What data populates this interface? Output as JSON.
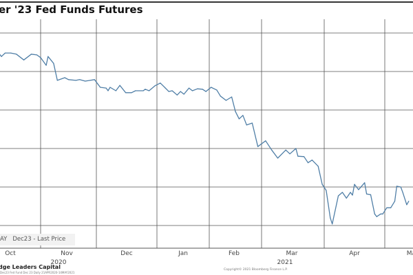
{
  "title": "er '23 Fed Funds Futures",
  "legend": {
    "ticker": "AY",
    "series": "Dec23 - Last Price"
  },
  "footer": {
    "name": "dge Leaders Capital",
    "info": "Dec23 Fed Fund Dec 23  Daily 21APR2020-14MAY2021",
    "copyright": "Copyright© 2021 Bloomberg Finance L.P."
  },
  "colors": {
    "line": "#4f7ea6",
    "grid": "#555555"
  },
  "chart_data": {
    "type": "line",
    "title": "er '23 Fed Funds Futures",
    "xlabel": "",
    "ylabel": "",
    "y_axis_labels_shown": false,
    "ylim_grid_units": [
      0,
      5
    ],
    "grid": true,
    "legend_position": "bottom-left",
    "x_tick_labels": [
      "Oct",
      "Nov",
      "Dec",
      "Jan",
      "Feb",
      "Mar",
      "Apr",
      "May"
    ],
    "x_year_labels": [
      "2020",
      "2021"
    ],
    "series": [
      {
        "name": "Dec23 - Last Price",
        "points": [
          [
            "2020-10-10",
            4.45
          ],
          [
            "2020-10-11",
            4.39
          ],
          [
            "2020-10-13",
            4.48
          ],
          [
            "2020-10-16",
            4.48
          ],
          [
            "2020-10-19",
            4.45
          ],
          [
            "2020-10-23",
            4.3
          ],
          [
            "2020-10-27",
            4.45
          ],
          [
            "2020-10-30",
            4.43
          ],
          [
            "2020-11-01",
            4.36
          ],
          [
            "2020-11-04",
            4.16
          ],
          [
            "2020-11-05",
            4.39
          ],
          [
            "2020-11-08",
            4.21
          ],
          [
            "2020-11-10",
            3.77
          ],
          [
            "2020-11-14",
            3.84
          ],
          [
            "2020-11-16",
            3.79
          ],
          [
            "2020-11-20",
            3.77
          ],
          [
            "2020-11-22",
            3.79
          ],
          [
            "2020-11-25",
            3.75
          ],
          [
            "2020-11-30",
            3.79
          ],
          [
            "2020-12-03",
            3.59
          ],
          [
            "2020-12-06",
            3.57
          ],
          [
            "2020-12-07",
            3.5
          ],
          [
            "2020-12-08",
            3.59
          ],
          [
            "2020-12-11",
            3.5
          ],
          [
            "2020-12-13",
            3.64
          ],
          [
            "2020-12-16",
            3.45
          ],
          [
            "2020-12-19",
            3.45
          ],
          [
            "2020-12-21",
            3.5
          ],
          [
            "2020-12-25",
            3.5
          ],
          [
            "2020-12-26",
            3.54
          ],
          [
            "2020-12-28",
            3.5
          ],
          [
            "2020-12-31",
            3.63
          ],
          [
            "2021-01-03",
            3.7
          ],
          [
            "2021-01-06",
            3.57
          ],
          [
            "2021-01-08",
            3.48
          ],
          [
            "2021-01-10",
            3.5
          ],
          [
            "2021-01-13",
            3.39
          ],
          [
            "2021-01-15",
            3.48
          ],
          [
            "2021-01-17",
            3.41
          ],
          [
            "2021-01-20",
            3.57
          ],
          [
            "2021-01-22",
            3.5
          ],
          [
            "2021-01-25",
            3.55
          ],
          [
            "2021-01-28",
            3.54
          ],
          [
            "2021-01-30",
            3.48
          ],
          [
            "2021-02-02",
            3.59
          ],
          [
            "2021-02-05",
            3.52
          ],
          [
            "2021-02-07",
            3.36
          ],
          [
            "2021-02-10",
            3.25
          ],
          [
            "2021-02-13",
            3.34
          ],
          [
            "2021-02-15",
            2.96
          ],
          [
            "2021-02-17",
            2.77
          ],
          [
            "2021-02-19",
            2.86
          ],
          [
            "2021-02-21",
            2.61
          ],
          [
            "2021-02-24",
            2.66
          ],
          [
            "2021-02-27",
            2.05
          ],
          [
            "2021-03-03",
            2.2
          ],
          [
            "2021-03-06",
            1.96
          ],
          [
            "2021-03-09",
            1.75
          ],
          [
            "2021-03-13",
            1.96
          ],
          [
            "2021-03-15",
            1.86
          ],
          [
            "2021-03-18",
            2.0
          ],
          [
            "2021-03-19",
            1.8
          ],
          [
            "2021-03-22",
            1.79
          ],
          [
            "2021-03-24",
            1.63
          ],
          [
            "2021-03-26",
            1.7
          ],
          [
            "2021-03-29",
            1.54
          ],
          [
            "2021-03-31",
            1.07
          ],
          [
            "2021-04-02",
            0.91
          ],
          [
            "2021-04-04",
            0.2
          ],
          [
            "2021-04-05",
            0.04
          ],
          [
            "2021-04-08",
            0.77
          ],
          [
            "2021-04-10",
            0.86
          ],
          [
            "2021-04-12",
            0.71
          ],
          [
            "2021-04-14",
            0.86
          ],
          [
            "2021-04-15",
            0.79
          ],
          [
            "2021-04-16",
            1.07
          ],
          [
            "2021-04-18",
            0.93
          ],
          [
            "2021-04-21",
            1.11
          ],
          [
            "2021-04-22",
            0.82
          ],
          [
            "2021-04-24",
            0.8
          ],
          [
            "2021-04-26",
            0.3
          ],
          [
            "2021-04-27",
            0.23
          ],
          [
            "2021-04-29",
            0.3
          ],
          [
            "2021-04-30",
            0.3
          ],
          [
            "2021-05-02",
            0.46
          ],
          [
            "2021-05-04",
            0.46
          ],
          [
            "2021-05-06",
            0.63
          ],
          [
            "2021-05-07",
            1.02
          ],
          [
            "2021-05-09",
            1.0
          ],
          [
            "2021-05-10",
            0.86
          ],
          [
            "2021-05-12",
            0.54
          ],
          [
            "2021-05-13",
            0.63
          ]
        ]
      }
    ]
  }
}
